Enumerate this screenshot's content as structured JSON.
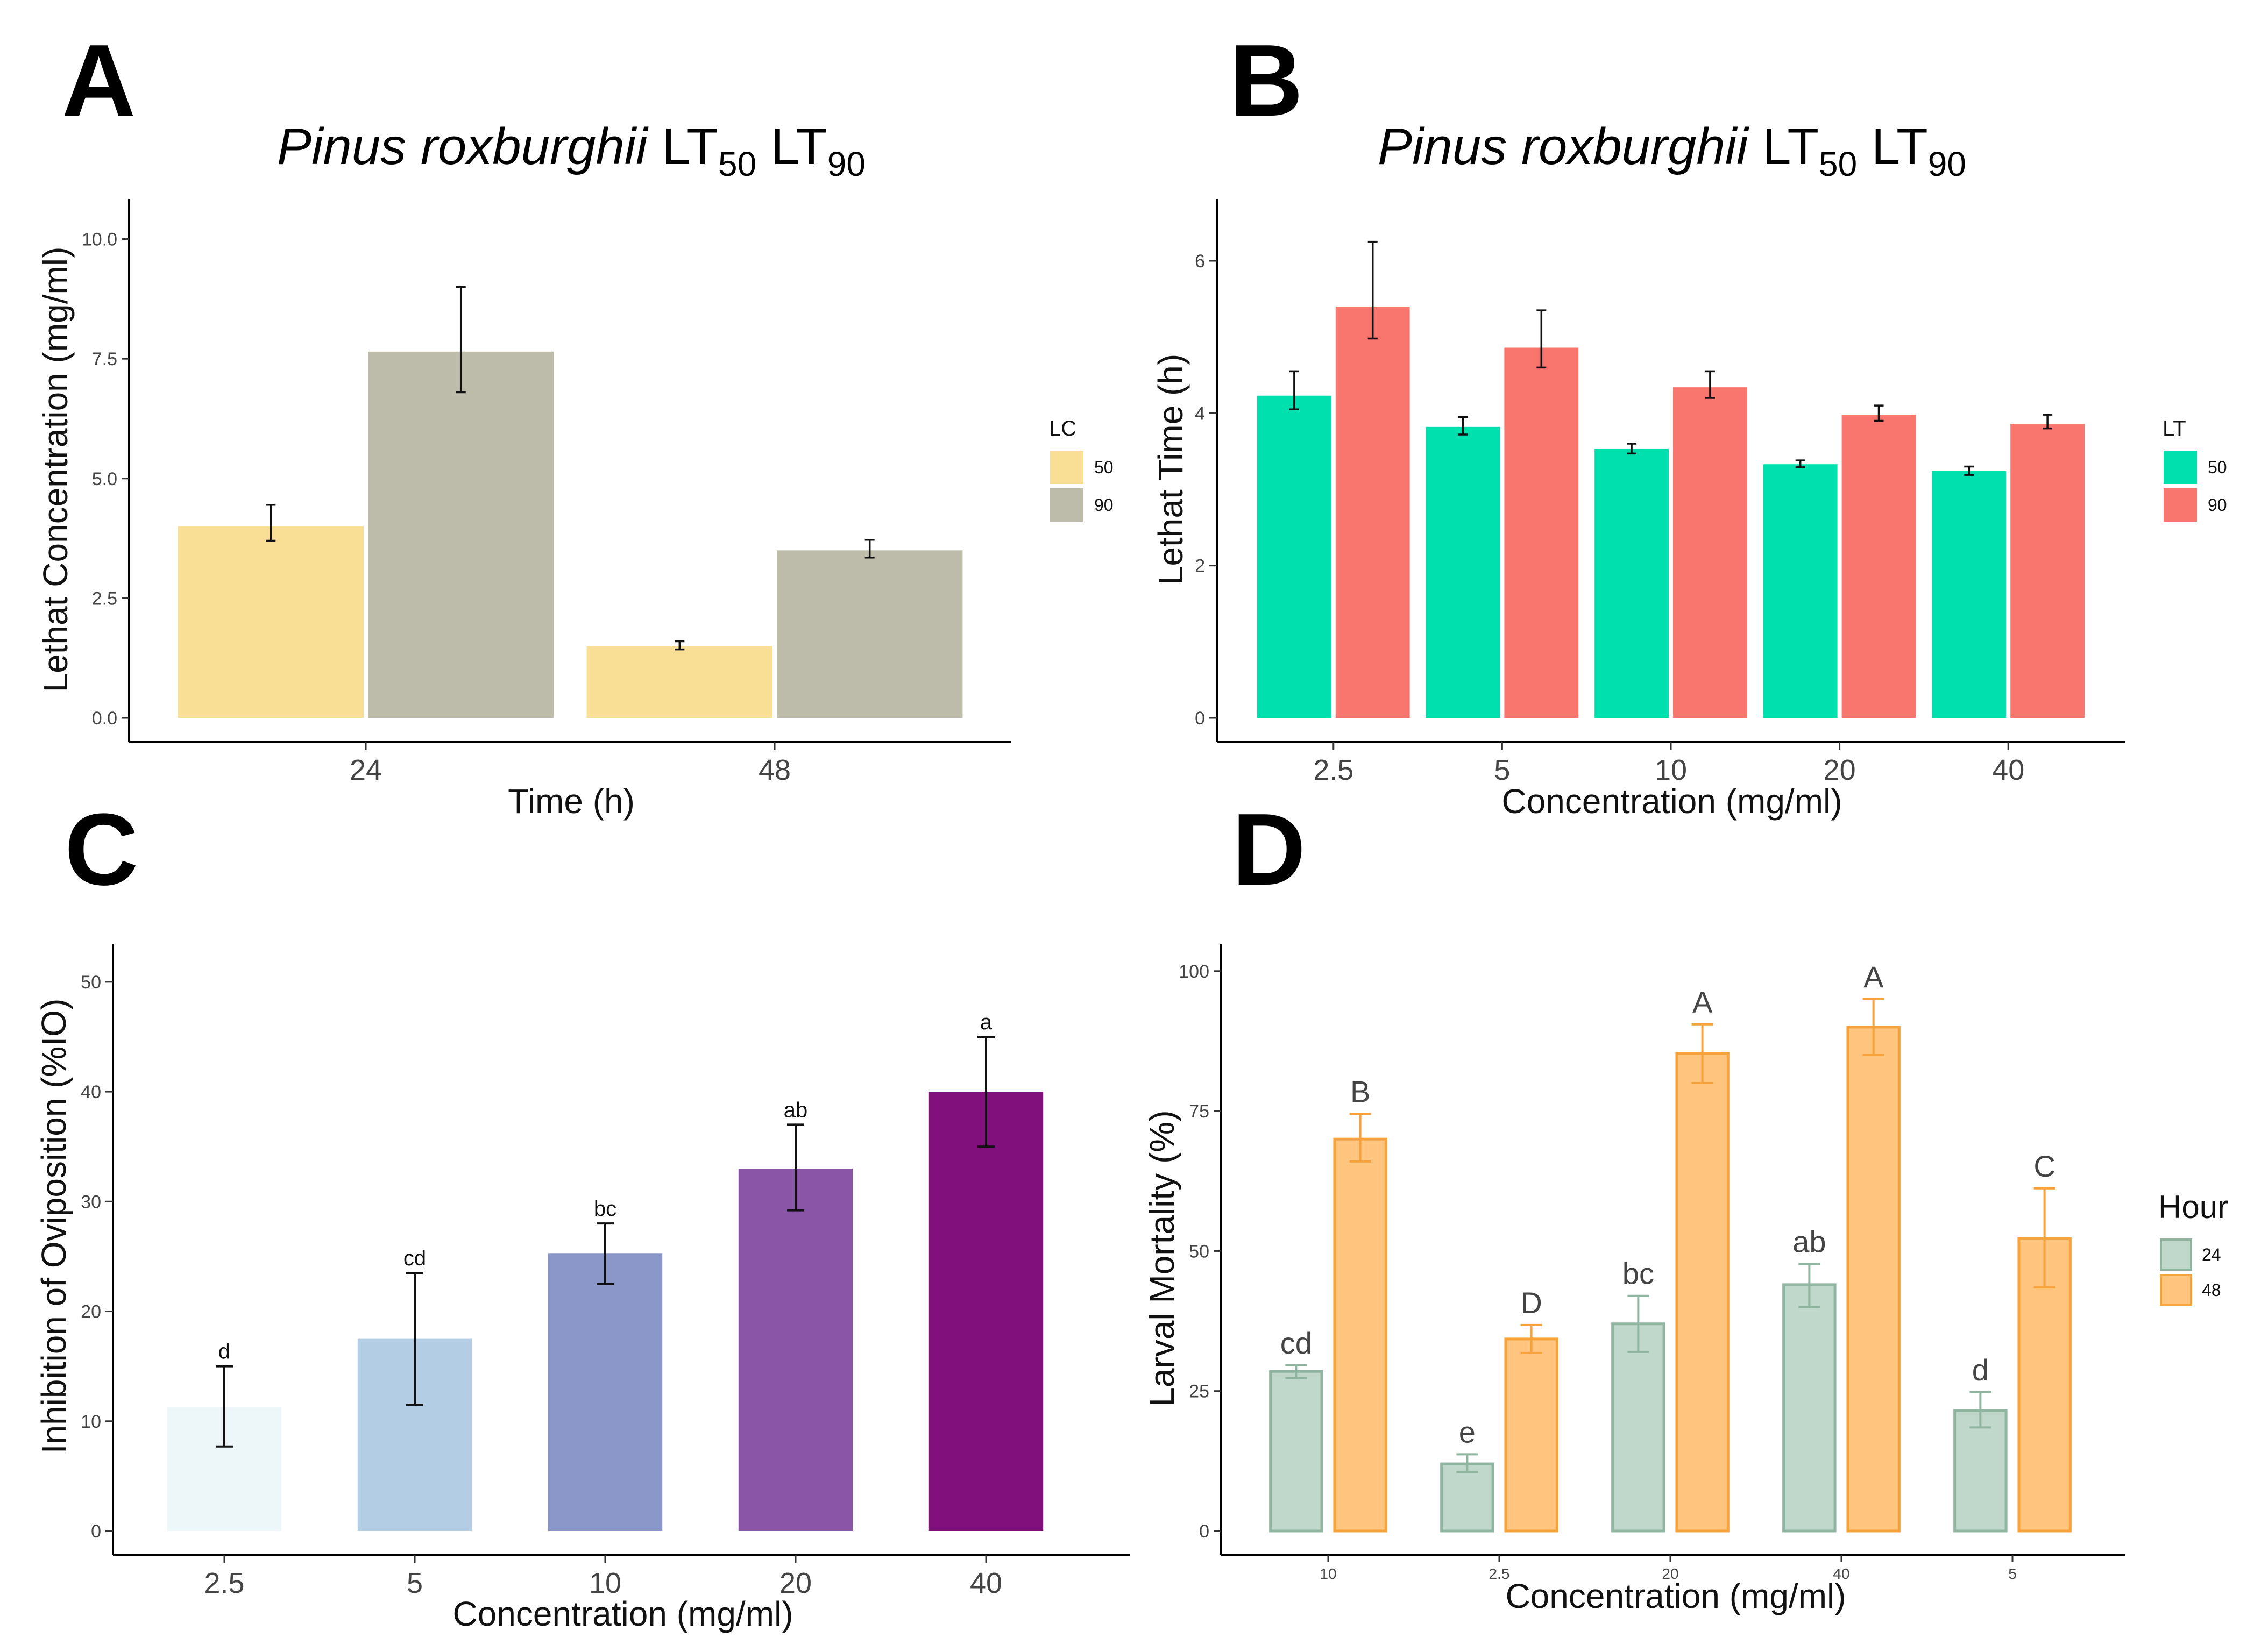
{
  "figure": {
    "panel_letters": [
      "A",
      "B",
      "C",
      "D"
    ]
  },
  "chart_data": [
    {
      "panel": "A",
      "type": "bar",
      "title_italic": "Pinus roxburghii",
      "title_rest": " LT",
      "title_sub1": "50",
      "title_mid": " LT",
      "title_sub2": "90",
      "xlabel": "Time (h)",
      "ylabel": "Lethat Concentration (mg/ml)",
      "categories": [
        "24",
        "48"
      ],
      "ylim": [
        0,
        10.5
      ],
      "yticks": [
        0,
        2.5,
        5,
        7.5,
        10
      ],
      "ytick_labels": [
        "0.0",
        "2.5",
        "5.0",
        "7.5",
        "10.0"
      ],
      "legend_title": "LC",
      "series": [
        {
          "name": "50",
          "color": "#F9DE96",
          "values": [
            4.0,
            1.5
          ],
          "err_low": [
            3.7,
            1.43
          ],
          "err_high": [
            4.45,
            1.6
          ]
        },
        {
          "name": "90",
          "color": "#BDBCAA",
          "values": [
            7.65,
            3.5
          ],
          "err_low": [
            6.8,
            3.35
          ],
          "err_high": [
            9.0,
            3.72
          ]
        }
      ]
    },
    {
      "panel": "B",
      "type": "bar",
      "title_italic": "Pinus roxburghii",
      "title_rest": " LT",
      "title_sub1": "50",
      "title_mid": " LT",
      "title_sub2": "90",
      "xlabel": "Concentration (mg/ml)",
      "ylabel": "Lethat Time (h)",
      "categories": [
        "2.5",
        "5",
        "10",
        "20",
        "40"
      ],
      "ylim": [
        0,
        6.6
      ],
      "yticks": [
        0,
        2,
        4,
        6
      ],
      "ytick_labels": [
        "0",
        "2",
        "4",
        "6"
      ],
      "legend_title": "LT",
      "series": [
        {
          "name": "50",
          "color": "#00E0AE",
          "values": [
            4.23,
            3.82,
            3.53,
            3.33,
            3.24
          ],
          "err_low": [
            4.05,
            3.72,
            3.47,
            3.29,
            3.19
          ],
          "err_high": [
            4.55,
            3.95,
            3.6,
            3.38,
            3.3
          ]
        },
        {
          "name": "90",
          "color": "#F8766D",
          "values": [
            5.4,
            4.86,
            4.34,
            3.98,
            3.86
          ],
          "err_low": [
            4.98,
            4.6,
            4.2,
            3.9,
            3.8
          ],
          "err_high": [
            6.25,
            5.35,
            4.55,
            4.1,
            3.98
          ]
        }
      ]
    },
    {
      "panel": "C",
      "type": "bar",
      "xlabel": "Concentration (mg/ml)",
      "ylabel": "Inhibition of Oviposition (%IO)",
      "categories": [
        "2.5",
        "5",
        "10",
        "20",
        "40"
      ],
      "ylim": [
        0,
        52
      ],
      "yticks": [
        0,
        10,
        20,
        30,
        40,
        50
      ],
      "ytick_labels": [
        "0",
        "10",
        "20",
        "30",
        "40",
        "50"
      ],
      "colors": [
        "#EDF7FA",
        "#B3CDE4",
        "#8B97C8",
        "#8A55A7",
        "#810F7C"
      ],
      "values": [
        11.3,
        17.5,
        25.3,
        33.0,
        40.0
      ],
      "err_low": [
        7.7,
        11.5,
        22.5,
        29.2,
        35.0
      ],
      "err_high": [
        15.0,
        23.5,
        28.0,
        37.0,
        45.0
      ],
      "letters": [
        "d",
        "cd",
        "bc",
        "ab",
        "a"
      ]
    },
    {
      "panel": "D",
      "type": "bar",
      "xlabel": "Concentration (mg/ml)",
      "ylabel": "Larval Mortality (%)",
      "categories": [
        "10",
        "2.5",
        "20",
        "40",
        "5"
      ],
      "ylim": [
        0,
        102
      ],
      "yticks": [
        0,
        25,
        50,
        75,
        100
      ],
      "ytick_labels": [
        "0",
        "25",
        "50",
        "75",
        "100"
      ],
      "legend_title": "Hour",
      "series": [
        {
          "name": "24",
          "fill": "#BFD8CB",
          "stroke": "#8FB5A0",
          "values": [
            28.5,
            12.0,
            37.0,
            44.0,
            21.5
          ],
          "err_low": [
            27.3,
            10.5,
            32.0,
            40.0,
            18.5
          ],
          "err_high": [
            29.6,
            13.7,
            42.0,
            47.7,
            24.8
          ],
          "letters": [
            "cd",
            "e",
            "bc",
            "ab",
            "d"
          ]
        },
        {
          "name": "48",
          "fill": "#FFC57E",
          "stroke": "#F5A23A",
          "values": [
            70.0,
            34.3,
            85.3,
            90.0,
            52.3
          ],
          "err_low": [
            66.0,
            31.8,
            80.0,
            85.0,
            43.5
          ],
          "err_high": [
            74.5,
            36.8,
            90.5,
            95.0,
            61.2
          ],
          "letters": [
            "B",
            "D",
            "A",
            "A",
            "C"
          ]
        }
      ]
    }
  ]
}
